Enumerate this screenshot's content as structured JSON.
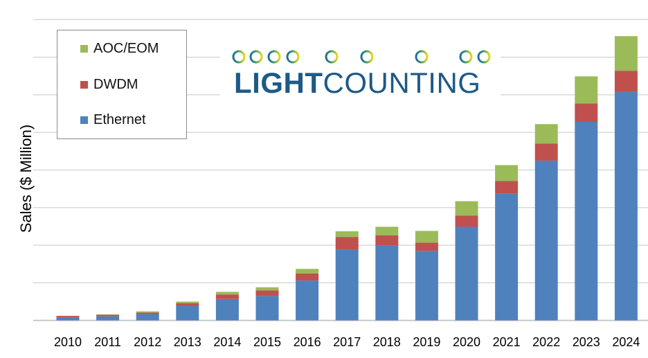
{
  "chart_data": {
    "type": "bar",
    "stacked": true,
    "title": "",
    "xlabel": "",
    "ylabel": "Sales ($ Million)",
    "y_tick_labels_shown": false,
    "grid": true,
    "ylim": [
      0,
      8
    ],
    "legend_position": "top-left",
    "categories": [
      "2010",
      "2011",
      "2012",
      "2013",
      "2014",
      "2015",
      "2016",
      "2017",
      "2018",
      "2019",
      "2020",
      "2021",
      "2022",
      "2023",
      "2024"
    ],
    "series": [
      {
        "name": "Ethernet",
        "color": "#4f81bd",
        "values": [
          0.08,
          0.11,
          0.17,
          0.39,
          0.57,
          0.65,
          1.06,
          1.88,
          2.0,
          1.85,
          2.49,
          3.37,
          4.25,
          5.28,
          6.08
        ]
      },
      {
        "name": "DWDM",
        "color": "#c0504d",
        "values": [
          0.04,
          0.04,
          0.04,
          0.07,
          0.12,
          0.15,
          0.19,
          0.34,
          0.26,
          0.22,
          0.3,
          0.34,
          0.45,
          0.49,
          0.56
        ]
      },
      {
        "name": "AOC/EOM",
        "color": "#9bbb59",
        "values": [
          0.0,
          0.01,
          0.03,
          0.04,
          0.07,
          0.08,
          0.12,
          0.15,
          0.23,
          0.31,
          0.38,
          0.42,
          0.52,
          0.72,
          0.92
        ]
      }
    ],
    "legend_order": [
      "AOC/EOM",
      "DWDM",
      "Ethernet"
    ]
  },
  "logo": {
    "bold": "LIGHT",
    "regular": "COUNTING"
  }
}
